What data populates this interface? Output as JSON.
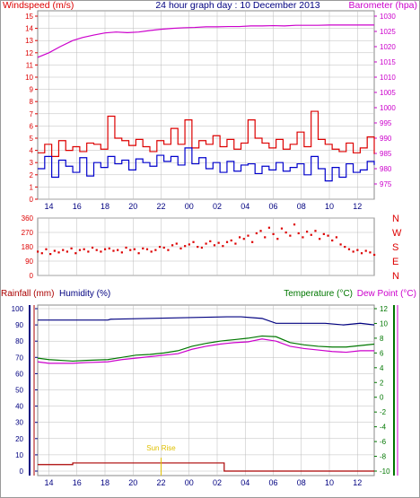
{
  "header": {
    "title": "24 hour graph day : 10 December 2013",
    "left_label": "Windspeed (m/s)",
    "right_label": "Barometer (hpa)"
  },
  "colors": {
    "red": "#dd0000",
    "blue": "#0000cc",
    "magenta": "#cc00cc",
    "green": "#007700",
    "navy": "#000080",
    "dark_red": "#aa0000",
    "sunrise": "#e0c000",
    "grid": "#bbbbbb"
  },
  "x_ticks": [
    "14",
    "16",
    "18",
    "20",
    "22",
    "00",
    "02",
    "04",
    "06",
    "08",
    "10",
    "12",
    "14",
    "16",
    "18",
    "20",
    "22",
    "00"
  ],
  "chart_data": [
    {
      "type": "line",
      "title": "24 hour graph day : 10 December 2013",
      "ylabel": "Windspeed (m/s)",
      "ylabel_right": "Barometer (hpa)",
      "ylim": [
        0,
        15
      ],
      "ylim_right": [
        970,
        1030
      ],
      "y_ticks": [
        "0",
        "1",
        "2",
        "3",
        "4",
        "5",
        "6",
        "7",
        "8",
        "9",
        "10",
        "11",
        "12",
        "13",
        "14",
        "15"
      ],
      "y_ticks_right": [
        "975",
        "980",
        "985",
        "990",
        "995",
        "1000",
        "1005",
        "1010",
        "1015",
        "1020",
        "1025",
        "1030"
      ],
      "x_hours": [
        0,
        24
      ],
      "series": [
        {
          "key": "barometer",
          "axis": "right",
          "x": [
            0,
            0.8,
            1.6,
            2.5,
            3.2,
            4,
            4.8,
            5.6,
            6.4,
            7.2,
            8,
            8.8,
            9.6,
            10.4,
            11.2,
            12,
            12.8,
            13.6,
            14.4,
            15.2,
            16,
            16.8,
            17.6,
            18.4,
            19.2,
            20,
            20.8,
            21.6,
            22.4,
            23.2,
            24
          ],
          "values": [
            1016.5,
            1018,
            1020,
            1022,
            1023,
            1023.8,
            1024.5,
            1024.8,
            1024.6,
            1024.8,
            1025.3,
            1025.7,
            1026,
            1026.2,
            1026.3,
            1026.5,
            1026.5,
            1026.6,
            1026.6,
            1026.8,
            1026.8,
            1026.9,
            1026.8,
            1027,
            1027,
            1027,
            1027.1,
            1027.1,
            1027.1,
            1027.1,
            1027.1
          ]
        },
        {
          "key": "wind_gust",
          "axis": "left",
          "x": [
            0,
            0.5,
            1,
            1.5,
            2,
            2.5,
            3,
            3.5,
            4,
            4.5,
            5,
            5.5,
            6,
            6.5,
            7,
            7.5,
            8,
            8.5,
            9,
            9.5,
            10,
            10.5,
            11,
            11.5,
            12,
            12.5,
            13,
            13.5,
            14,
            14.5,
            15,
            15.5,
            16,
            16.5,
            17,
            17.5,
            18,
            18.5,
            19,
            19.5,
            20,
            20.5,
            21,
            21.5,
            22,
            22.5,
            23,
            23.5,
            24
          ],
          "values": [
            3.8,
            4.5,
            3.5,
            4.8,
            4.0,
            4.3,
            3.9,
            4.6,
            4.5,
            4.1,
            6.8,
            5.0,
            4.8,
            4.4,
            4.9,
            4.3,
            3.9,
            4.8,
            4.5,
            5.8,
            4.5,
            6.5,
            4.2,
            4.8,
            4.5,
            5.2,
            4.3,
            4.9,
            4.1,
            4.6,
            6.5,
            5.0,
            4.6,
            4.2,
            4.9,
            4.1,
            4.5,
            5.5,
            4.3,
            7.2,
            4.9,
            4.5,
            4.1,
            3.9,
            4.6,
            3.8,
            4.2,
            5.1,
            3.7
          ]
        },
        {
          "key": "wind_avg",
          "axis": "left",
          "x": [
            0,
            0.5,
            1,
            1.5,
            2,
            2.5,
            3,
            3.5,
            4,
            4.5,
            5,
            5.5,
            6,
            6.5,
            7,
            7.5,
            8,
            8.5,
            9,
            9.5,
            10,
            10.5,
            11,
            11.5,
            12,
            12.5,
            13,
            13.5,
            14,
            14.5,
            15,
            15.5,
            16,
            16.5,
            17,
            17.5,
            18,
            18.5,
            19,
            19.5,
            20,
            20.5,
            21,
            21.5,
            22,
            22.5,
            23,
            23.5,
            24
          ],
          "values": [
            2.5,
            3.5,
            1.8,
            3.2,
            2.7,
            2.2,
            3.4,
            1.9,
            3.0,
            2.6,
            3.5,
            2.9,
            3.2,
            2.4,
            3.3,
            3.0,
            2.7,
            3.6,
            3.1,
            3.5,
            2.8,
            4.2,
            2.9,
            3.4,
            2.5,
            3.0,
            2.2,
            3.1,
            2.3,
            2.8,
            2.9,
            2.1,
            2.7,
            2.4,
            3.0,
            2.3,
            2.6,
            2.9,
            2.0,
            3.5,
            2.5,
            1.5,
            2.6,
            1.8,
            2.9,
            2.2,
            2.4,
            3.1,
            2.8
          ]
        }
      ]
    },
    {
      "type": "scatter",
      "ylabel_right": [
        "N",
        "W",
        "S",
        "E",
        "N"
      ],
      "ylim": [
        0,
        360
      ],
      "y_ticks": [
        "0",
        "90",
        "180",
        "270",
        "360"
      ],
      "series": [
        {
          "key": "wind_direction",
          "x": [
            0,
            0.3,
            0.6,
            0.9,
            1.2,
            1.5,
            1.8,
            2.1,
            2.4,
            2.7,
            3,
            3.3,
            3.6,
            3.9,
            4.2,
            4.5,
            4.8,
            5.1,
            5.4,
            5.7,
            6,
            6.3,
            6.6,
            6.9,
            7.2,
            7.5,
            7.8,
            8.1,
            8.4,
            8.7,
            9,
            9.3,
            9.6,
            9.9,
            10.2,
            10.5,
            10.8,
            11.1,
            11.4,
            11.7,
            12,
            12.3,
            12.6,
            12.9,
            13.2,
            13.5,
            13.8,
            14.1,
            14.4,
            14.7,
            15,
            15.3,
            15.6,
            15.9,
            16.2,
            16.5,
            16.8,
            17.1,
            17.4,
            17.7,
            18,
            18.3,
            18.6,
            18.9,
            19.2,
            19.5,
            19.8,
            20.1,
            20.4,
            20.7,
            21,
            21.3,
            21.6,
            21.9,
            22.2,
            22.5,
            22.8,
            23.1,
            23.4,
            23.7,
            24
          ],
          "values": [
            150,
            140,
            165,
            135,
            155,
            145,
            160,
            150,
            170,
            140,
            160,
            165,
            150,
            175,
            160,
            150,
            165,
            170,
            155,
            160,
            145,
            175,
            160,
            165,
            140,
            170,
            165,
            150,
            160,
            180,
            175,
            160,
            190,
            200,
            170,
            185,
            195,
            210,
            180,
            175,
            200,
            215,
            190,
            205,
            185,
            210,
            220,
            200,
            240,
            230,
            250,
            210,
            265,
            280,
            240,
            300,
            260,
            230,
            295,
            270,
            250,
            320,
            265,
            240,
            275,
            255,
            280,
            230,
            260,
            250,
            220,
            240,
            195,
            180,
            165,
            150,
            160,
            140,
            155,
            145,
            130
          ]
        }
      ]
    },
    {
      "type": "line",
      "ylabel": "Rainfall (mm)",
      "ylabel2": "Humidity (%)",
      "ylabel_right": "Temperature (°C)",
      "ylabel_right2": "Dew Point (°C)",
      "ylim": [
        0,
        100
      ],
      "ylim_right": [
        -10,
        12
      ],
      "y_ticks": [
        "0",
        "10",
        "20",
        "30",
        "40",
        "50",
        "60",
        "70",
        "80",
        "90",
        "100"
      ],
      "y_ticks_right": [
        "-10",
        "-8",
        "-6",
        "-4",
        "-2",
        "0",
        "2",
        "4",
        "6",
        "8",
        "10",
        "12"
      ],
      "annotation": "Sun Rise",
      "annotation_hour": 8.8,
      "series": [
        {
          "key": "humidity",
          "axis": "left",
          "x": [
            0,
            4.5,
            5,
            5.2,
            13.5,
            14.5,
            16,
            17,
            20.5,
            21.8,
            23,
            24
          ],
          "values": [
            93,
            93,
            93,
            93.5,
            95,
            95,
            94,
            91,
            91,
            90,
            91,
            90
          ]
        },
        {
          "key": "temperature",
          "axis": "right",
          "x": [
            0,
            0.8,
            2.5,
            3.5,
            5,
            6,
            7,
            8,
            9,
            10,
            11,
            12,
            13,
            14,
            15,
            16,
            17,
            18,
            19,
            20,
            21,
            22,
            23,
            24
          ],
          "values": [
            5.3,
            5.1,
            4.9,
            5,
            5.1,
            5.4,
            5.7,
            5.8,
            6,
            6.3,
            6.9,
            7.3,
            7.6,
            7.8,
            8,
            8.3,
            8.2,
            7.4,
            7.1,
            6.9,
            6.8,
            6.8,
            7,
            7.2
          ]
        },
        {
          "key": "dew_point",
          "axis": "right",
          "x": [
            0,
            0.8,
            2.5,
            3.5,
            5,
            6,
            7,
            8,
            9,
            10,
            11,
            12,
            13,
            14,
            15,
            16,
            17,
            18,
            19,
            20,
            21,
            22,
            23,
            24
          ],
          "values": [
            4.8,
            4.6,
            4.6,
            4.7,
            4.8,
            5.1,
            5.3,
            5.5,
            5.7,
            5.9,
            6.5,
            6.9,
            7.2,
            7.4,
            7.5,
            7.9,
            7.6,
            6.9,
            6.6,
            6.4,
            6.2,
            6.1,
            6.3,
            6.3
          ]
        },
        {
          "key": "rainfall",
          "axis": "left",
          "x": [
            0,
            2.5,
            2.5,
            13.3,
            13.3,
            24
          ],
          "values": [
            4,
            4,
            5,
            5,
            0,
            0
          ]
        }
      ]
    }
  ]
}
